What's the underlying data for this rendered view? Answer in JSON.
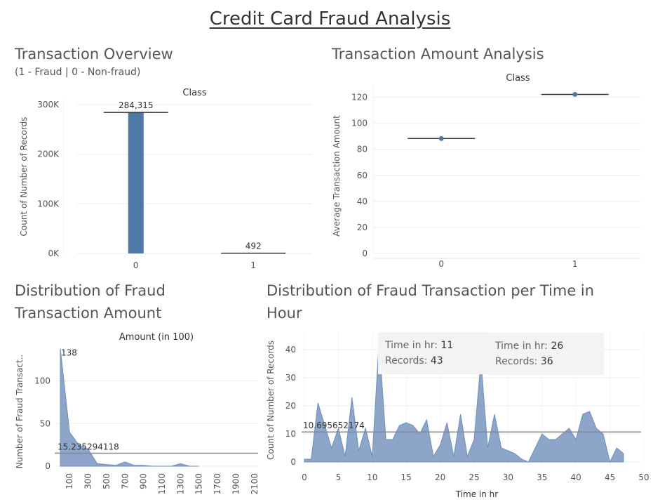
{
  "dashboard": {
    "title": "Credit Card Fraud Analysis"
  },
  "colors": {
    "mark": "#4e79a7",
    "area": "#6f8fbb",
    "ref_line": "#888888",
    "grid": "#eeeeee"
  },
  "panels": {
    "overview": {
      "title": "Transaction Overview",
      "subtitle": "(1 - Fraud | 0 - Non-fraud)"
    },
    "amount_analysis": {
      "title": "Transaction Amount Analysis"
    },
    "fraud_amount": {
      "title_line1": "Distribution of Fraud",
      "title_line2": "Transaction Amount"
    },
    "fraud_time": {
      "title_line1": "Distribution of Fraud Transaction  per Time in",
      "title_line2": "Hour"
    }
  },
  "tooltips": [
    {
      "k1": "Time in hr:",
      "v1": "11",
      "k2": "Records:",
      "v2": "43"
    },
    {
      "k1": "Time in hr:",
      "v1": "26",
      "k2": "Records:",
      "v2": "36"
    }
  ],
  "chart_data": [
    {
      "type": "bar",
      "header": "Class",
      "ylabel": "Count of Number of Records",
      "categories": [
        "0",
        "1"
      ],
      "values": [
        284315,
        492
      ],
      "data_labels": [
        "284,315",
        "492"
      ],
      "ylim": [
        0,
        310000
      ],
      "yticks": [
        0,
        100000,
        200000,
        300000
      ],
      "ytick_labels": [
        "0K",
        "100K",
        "200K",
        "300K"
      ]
    },
    {
      "type": "scatter",
      "header": "Class",
      "ylabel": "Average Transaction Amount",
      "categories": [
        "0",
        "1"
      ],
      "values": [
        88.3,
        122.2
      ],
      "ylim": [
        0,
        130
      ],
      "yticks": [
        0,
        20,
        40,
        60,
        80,
        100,
        120
      ]
    },
    {
      "type": "area",
      "header": "Amount (in 100)",
      "ylabel": "Number of Fraud Transact..",
      "x": [
        0,
        100,
        200,
        300,
        400,
        500,
        600,
        700,
        800,
        900,
        1000,
        1100,
        1200,
        1300,
        1400,
        1500
      ],
      "values": [
        138,
        40,
        25,
        20,
        3,
        2,
        1,
        5,
        1,
        1,
        0,
        0,
        0,
        3,
        0,
        0
      ],
      "peak_label": "138",
      "reference_line": 15.235294118,
      "reference_label": "15.235294118",
      "xticks": [
        "100",
        "300",
        "500",
        "700",
        "900",
        "1100",
        "1300",
        "1500",
        "1700",
        "1900",
        "2100"
      ],
      "yticks": [
        0,
        50,
        100
      ],
      "ylim": [
        0,
        145
      ]
    },
    {
      "type": "area",
      "xlabel": "Time in hr",
      "ylabel": "Count of Number of Records",
      "x": [
        0,
        1,
        2,
        3,
        4,
        5,
        6,
        7,
        8,
        9,
        10,
        11,
        12,
        13,
        14,
        15,
        16,
        17,
        18,
        19,
        20,
        21,
        22,
        23,
        24,
        25,
        26,
        27,
        28,
        29,
        30,
        31,
        32,
        33,
        34,
        35,
        36,
        37,
        38,
        39,
        40,
        41,
        42,
        43,
        44,
        45,
        46,
        47
      ],
      "values": [
        1,
        1,
        21,
        13,
        5,
        12,
        2,
        23,
        4,
        12,
        2,
        43,
        8,
        8,
        13,
        14,
        13,
        10,
        15,
        2,
        6,
        14,
        2,
        17,
        2,
        8,
        36,
        5,
        17,
        5,
        4,
        3,
        1,
        0,
        5,
        10,
        8,
        8,
        10,
        12,
        8,
        17,
        18,
        12,
        10,
        0,
        5,
        3
      ],
      "reference_line": 10.695652174,
      "reference_label": "10.695652174",
      "xticks": [
        0,
        5,
        10,
        15,
        20,
        25,
        30,
        35,
        40,
        45,
        50
      ],
      "yticks": [
        0,
        10,
        20,
        30,
        40
      ],
      "xlim": [
        0,
        50
      ],
      "ylim": [
        -2,
        46
      ]
    }
  ]
}
